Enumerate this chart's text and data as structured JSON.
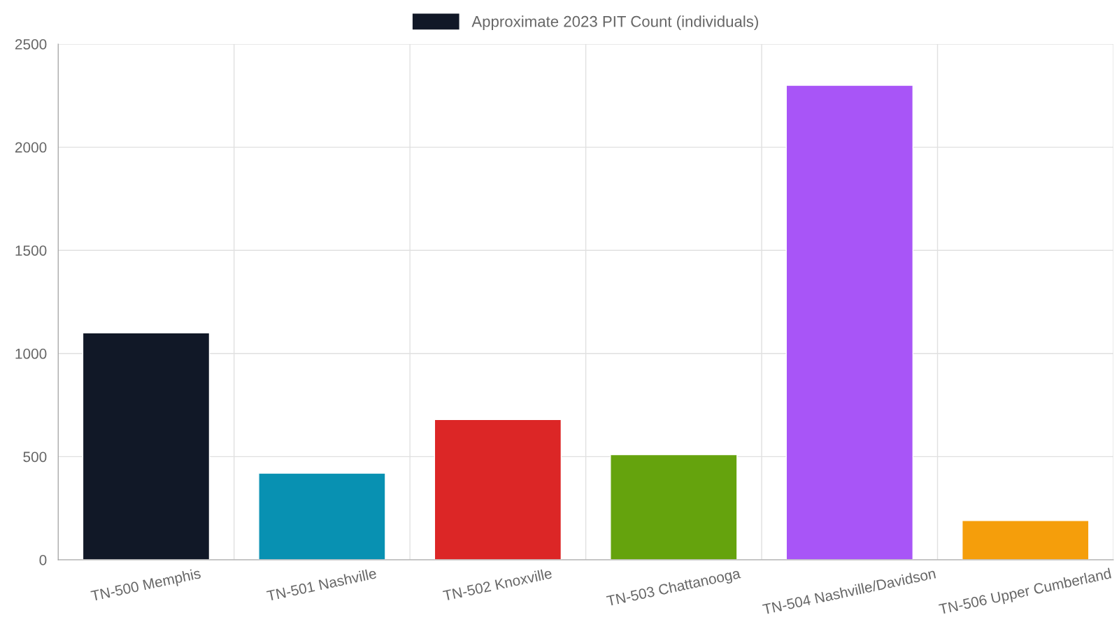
{
  "chart_data": {
    "type": "bar",
    "categories": [
      "TN-500 Memphis",
      "TN-501 Nashville",
      "TN-502 Knoxville",
      "TN-503 Chattanooga",
      "TN-504 Nashville/Davidson",
      "TN-506 Upper Cumberland"
    ],
    "series": [
      {
        "name": "Approximate 2023 PIT Count (individuals)",
        "color": "#111827",
        "colors": [
          "#111827",
          "#0891b2",
          "#dc2626",
          "#65a30d",
          "#a855f7",
          "#f59e0b"
        ],
        "values": [
          1100,
          420,
          680,
          510,
          2300,
          190
        ]
      }
    ],
    "ylim": [
      0,
      2500
    ],
    "yticks": [
      0,
      500,
      1000,
      1500,
      2000,
      2500
    ],
    "grid": true,
    "legend": "top"
  }
}
